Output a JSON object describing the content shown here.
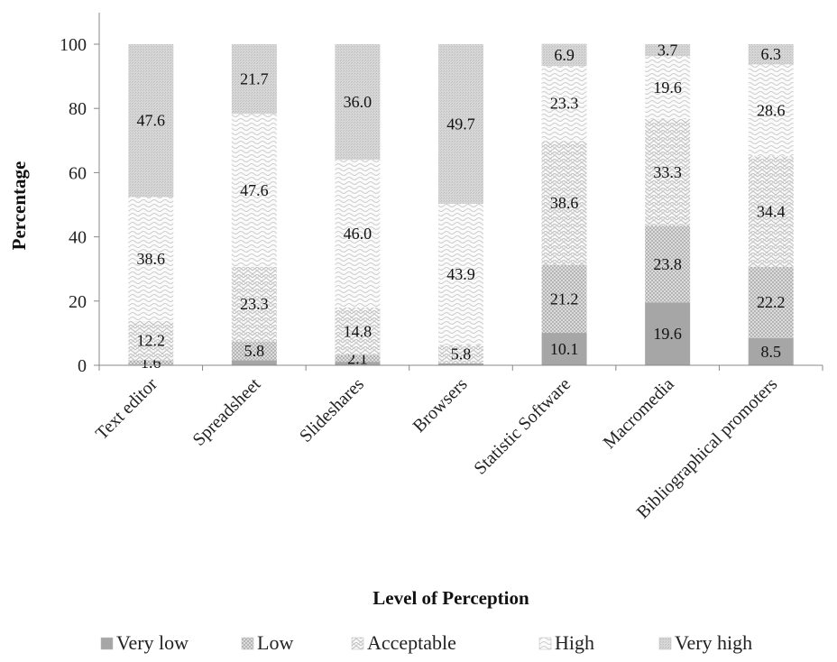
{
  "chart_data": {
    "type": "bar",
    "stacked": true,
    "title": "",
    "xlabel": "Level of Perception",
    "ylabel": "Percentage",
    "ylim": [
      0,
      100
    ],
    "yticks": [
      0,
      20,
      40,
      60,
      80,
      100
    ],
    "grid": false,
    "legend_position": "bottom",
    "categories": [
      "Text editor",
      "Spreadsheet",
      "Slideshares",
      "Browsers",
      "Statistic Software",
      "Macromedia",
      "Bibliographical promoters"
    ],
    "series": [
      {
        "name": "Very low",
        "color": "#a6a6a6",
        "pattern": "solid",
        "values": [
          0,
          1.6,
          1.1,
          0.6,
          10.1,
          19.6,
          8.5
        ],
        "labels": [
          "",
          "",
          "",
          "",
          "10.1",
          "19.6",
          "8.5"
        ]
      },
      {
        "name": "Low",
        "color": "#c8c8c8",
        "pattern": "dots",
        "values": [
          1.6,
          5.8,
          2.1,
          0,
          21.2,
          23.8,
          22.2
        ],
        "labels": [
          "1.6",
          "5.8",
          "2.1",
          "",
          "21.2",
          "23.8",
          "22.2"
        ]
      },
      {
        "name": "Acceptable",
        "color": "#d0d0d0",
        "pattern": "zigzag",
        "values": [
          12.2,
          23.3,
          14.8,
          5.8,
          38.6,
          33.3,
          34.4
        ],
        "labels": [
          "12.2",
          "23.3",
          "14.8",
          "5.8",
          "38.6",
          "33.3",
          "34.4"
        ]
      },
      {
        "name": "High",
        "color": "#d8d8d8",
        "pattern": "waves",
        "values": [
          38.6,
          47.6,
          46.0,
          43.9,
          23.3,
          19.6,
          28.6
        ],
        "labels": [
          "38.6",
          "47.6",
          "46.0",
          "43.9",
          "23.3",
          "19.6",
          "28.6"
        ]
      },
      {
        "name": "Very high",
        "color": "#cccccc",
        "pattern": "fine-dots",
        "values": [
          47.6,
          21.7,
          36.0,
          49.7,
          6.9,
          3.7,
          6.3
        ],
        "labels": [
          "47.6",
          "21.7",
          "36.0",
          "49.7",
          "6.9",
          "3.7",
          "6.3"
        ]
      }
    ]
  }
}
